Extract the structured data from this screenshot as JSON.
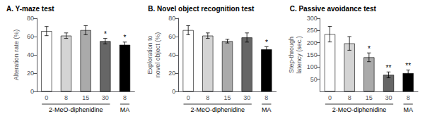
{
  "chart_data": [
    {
      "type": "bar",
      "title": "A. Y-maze test",
      "ylabel": "Alteration rate (%)",
      "categories": [
        "0",
        "8",
        "15",
        "30",
        "8"
      ],
      "values": [
        66,
        61,
        67,
        55,
        51
      ],
      "errors": [
        5,
        3,
        5,
        3,
        3
      ],
      "colors": [
        "#ffffff",
        "#d4d4d4",
        "#aaaaaa",
        "#666666",
        "#000000"
      ],
      "annotations": [
        null,
        null,
        null,
        "*",
        "*"
      ],
      "groups": [
        {
          "name": "2-MeO-diphenidine",
          "count": 4
        },
        {
          "name": "MA",
          "count": 1
        }
      ],
      "ylim": [
        0,
        80
      ],
      "yticks": [
        0,
        20,
        40,
        60,
        80
      ],
      "grid": false
    },
    {
      "type": "bar",
      "title": "B. Novel object recognition test",
      "ylabel": "Exploration to\nnovel object (%)",
      "categories": [
        "0",
        "8",
        "15",
        "30",
        "8"
      ],
      "values": [
        67,
        61,
        55,
        59,
        46
      ],
      "errors": [
        5,
        3,
        2,
        5,
        3
      ],
      "colors": [
        "#ffffff",
        "#d4d4d4",
        "#aaaaaa",
        "#666666",
        "#000000"
      ],
      "annotations": [
        null,
        null,
        null,
        null,
        "*"
      ],
      "groups": [
        {
          "name": "2-MeO-diphenidine",
          "count": 4
        },
        {
          "name": "MA",
          "count": 1
        }
      ],
      "ylim": [
        0,
        80
      ],
      "yticks": [
        0,
        20,
        40,
        60,
        80
      ],
      "grid": false
    },
    {
      "type": "bar",
      "title": "C. Passive avoidance test",
      "ylabel": "Step-through\nlatency (sec.)",
      "categories": [
        "0",
        "8",
        "15",
        "30",
        "8"
      ],
      "values": [
        235,
        197,
        140,
        68,
        75
      ],
      "errors": [
        32,
        28,
        18,
        12,
        13
      ],
      "colors": [
        "#ffffff",
        "#d4d4d4",
        "#aaaaaa",
        "#666666",
        "#000000"
      ],
      "annotations": [
        null,
        null,
        "*",
        "**",
        "**"
      ],
      "groups": [
        {
          "name": "2-MeO-diphenidine",
          "count": 4
        },
        {
          "name": "MA",
          "count": 1
        }
      ],
      "ylim": [
        0,
        300
      ],
      "yticks": [
        50,
        100,
        150,
        200,
        250,
        300
      ],
      "grid": false
    }
  ]
}
